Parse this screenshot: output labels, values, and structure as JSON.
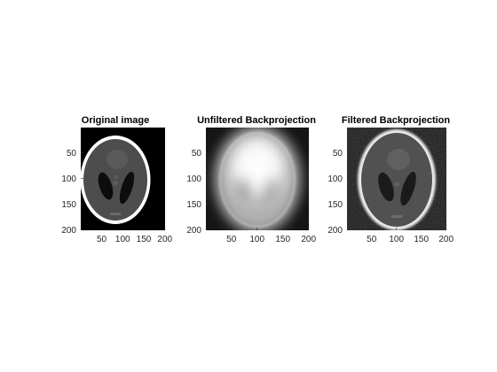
{
  "figure": {
    "background": "#ffffff"
  },
  "chart_data": [
    {
      "type": "heatmap",
      "title": "Original image",
      "xlabel": "",
      "ylabel": "",
      "xlim": [
        0.5,
        200.5
      ],
      "ylim": [
        0.5,
        200.5
      ],
      "xticks": [
        50,
        100,
        150,
        200
      ],
      "yticks": [
        50,
        100,
        150,
        200
      ],
      "colormap": "gray",
      "rendering": "original"
    },
    {
      "type": "heatmap",
      "title": "Unfiltered Backprojection",
      "xlabel": "",
      "ylabel": "",
      "xlim": [
        0.5,
        200.5
      ],
      "ylim": [
        0.5,
        200.5
      ],
      "xticks": [
        50,
        100,
        150,
        200
      ],
      "yticks": [
        50,
        100,
        150,
        200
      ],
      "colormap": "gray",
      "rendering": "blurred"
    },
    {
      "type": "heatmap",
      "title": "Filtered Backprojection",
      "xlabel": "",
      "ylabel": "",
      "xlim": [
        0.5,
        200.5
      ],
      "ylim": [
        0.5,
        200.5
      ],
      "xticks": [
        50,
        100,
        150,
        200
      ],
      "yticks": [
        50,
        100,
        150,
        200
      ],
      "colormap": "gray",
      "rendering": "filtered"
    }
  ]
}
